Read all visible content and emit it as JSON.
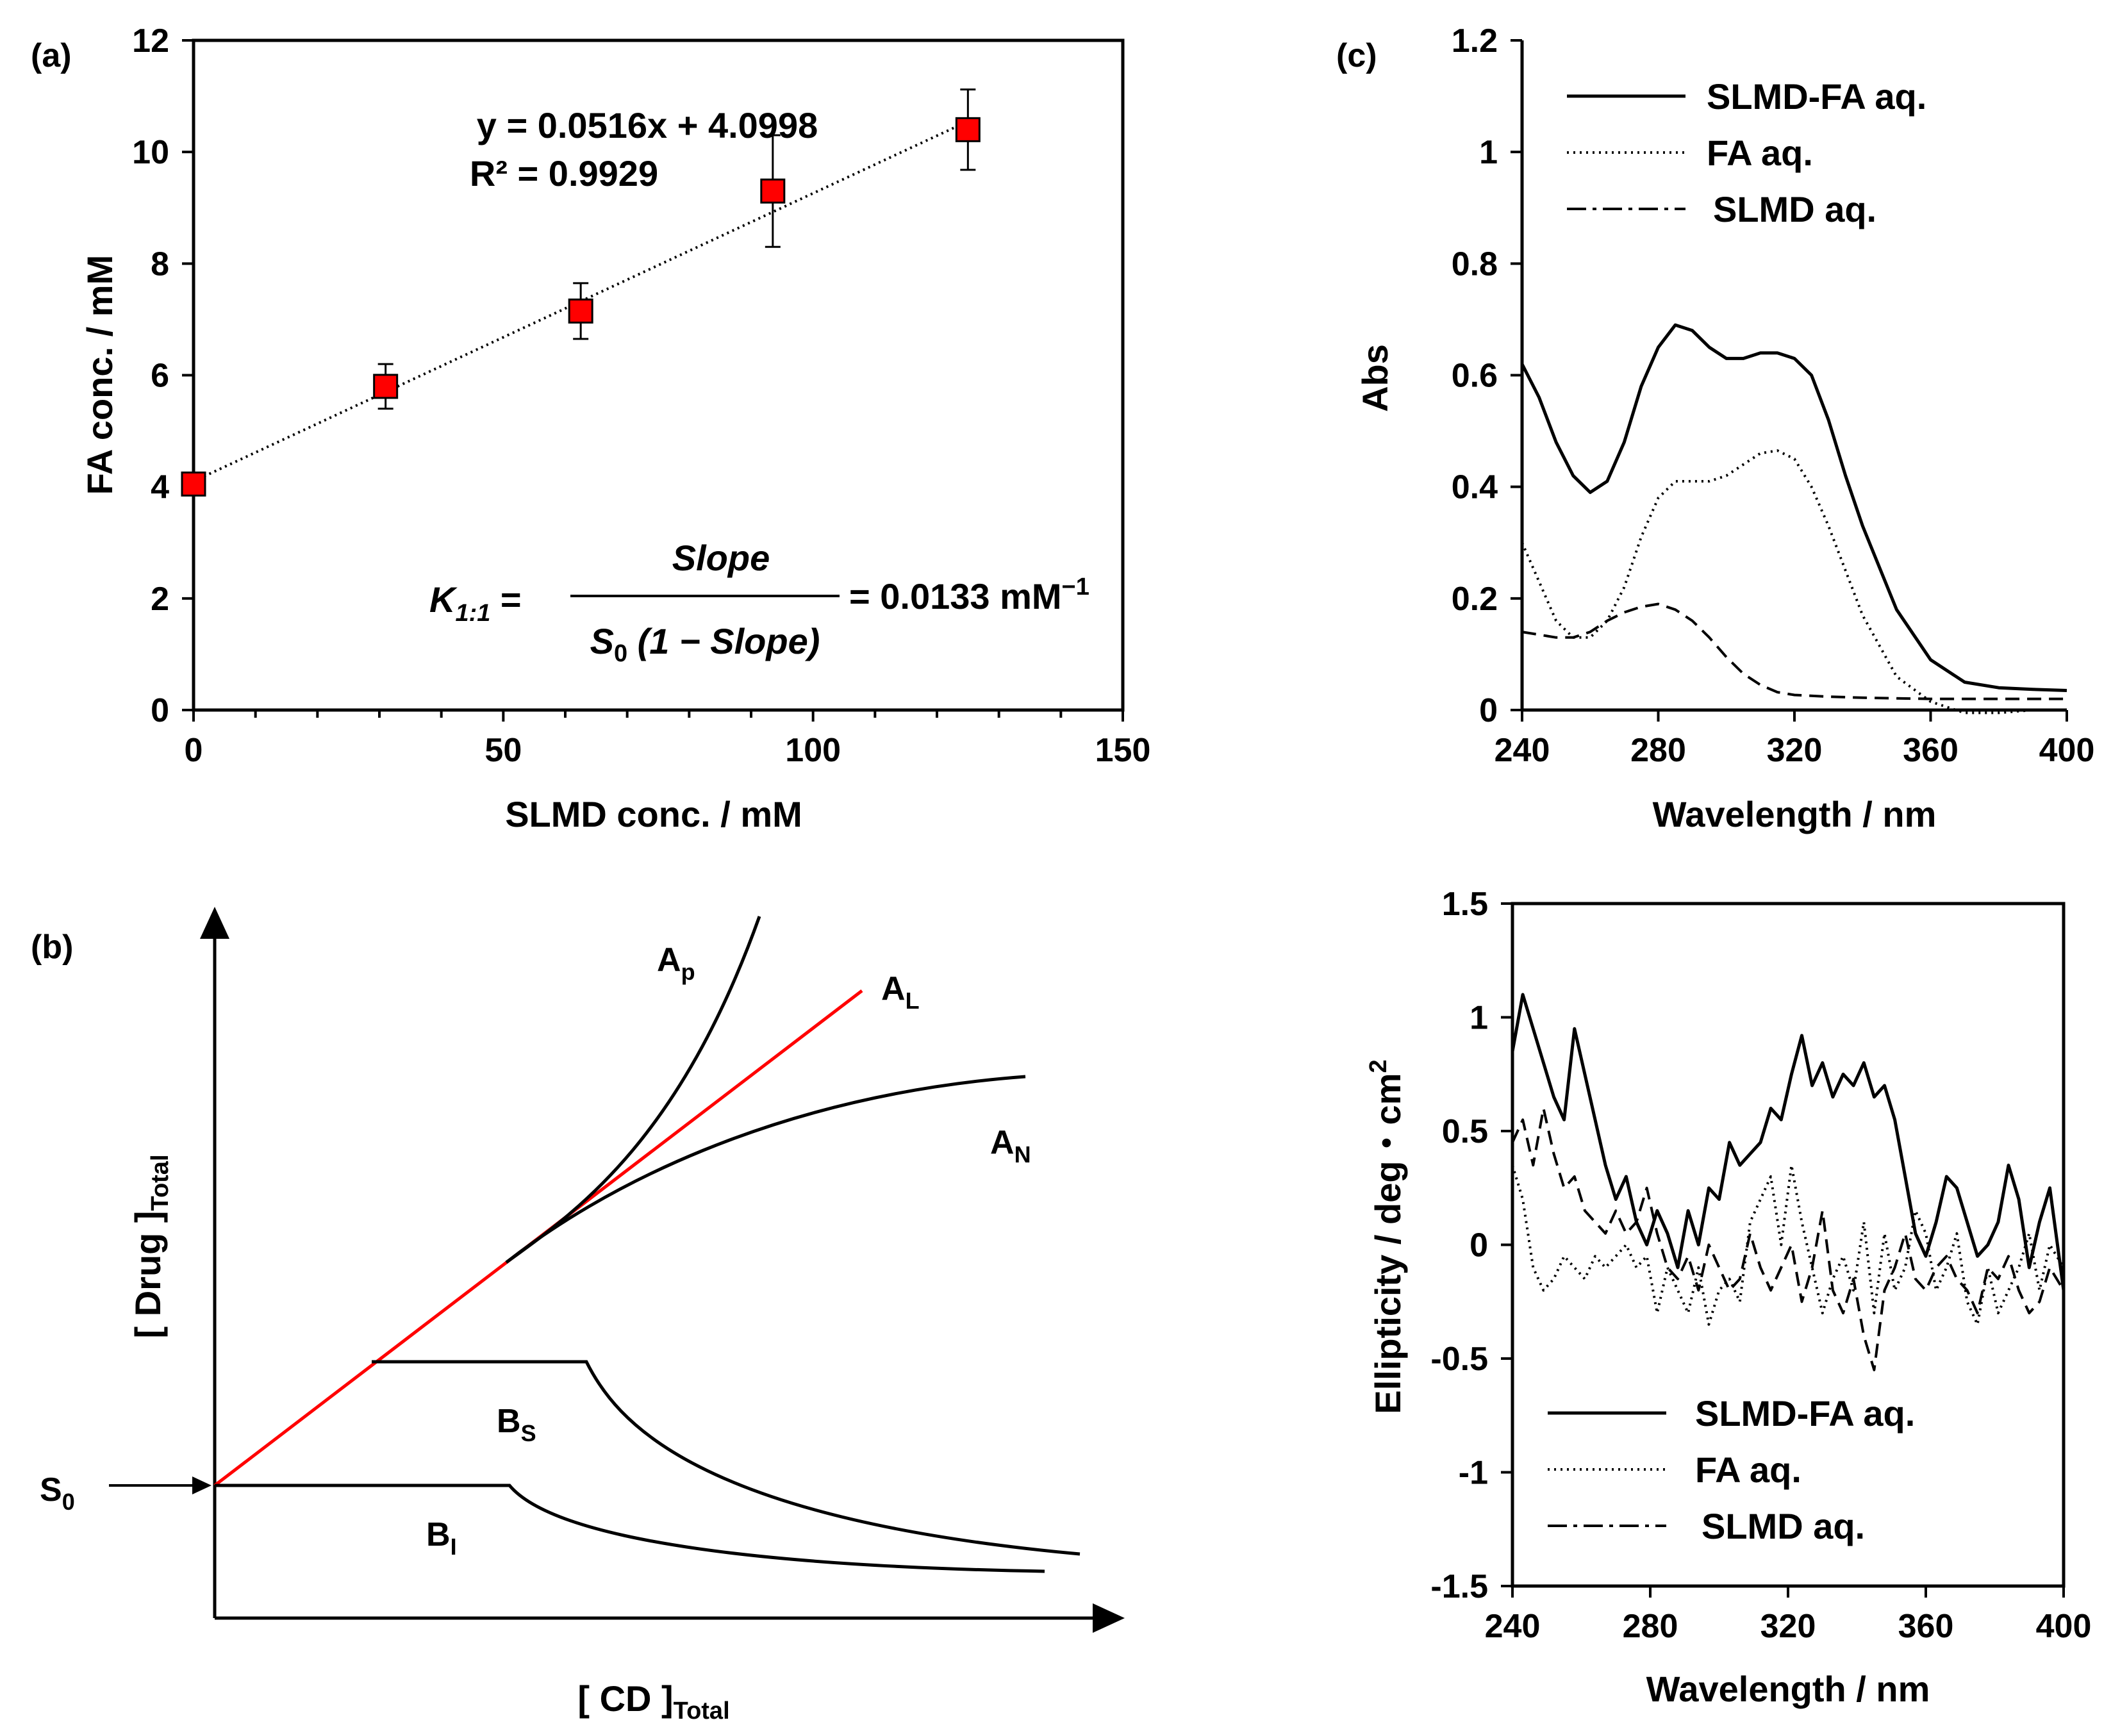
{
  "figure": {
    "a": {
      "label": "(a)",
      "chart_data": {
        "type": "scatter",
        "xlabel": "SLMD conc. / mM",
        "ylabel": "FA conc. / mM",
        "xlim": [
          0,
          150
        ],
        "ylim": [
          0,
          12
        ],
        "xticks": [
          "0",
          "50",
          "100",
          "150"
        ],
        "yticks": [
          "0",
          "2",
          "4",
          "6",
          "8",
          "10",
          "12"
        ],
        "x": [
          0,
          31,
          62.5,
          93.5,
          125
        ],
        "y": [
          4.05,
          5.8,
          7.15,
          9.3,
          10.4
        ],
        "err": [
          0,
          0.4,
          0.5,
          1.0,
          0.72
        ],
        "marker_color": "#ff0000",
        "trendline": {
          "slope": 0.0516,
          "intercept": 4.0998
        },
        "equation": "y = 0.0516x + 4.0998",
        "r2": "R² = 0.9929",
        "k_lhs": "K",
        "k_sub": "1:1",
        "k_eq": " =",
        "k_num": "Slope",
        "k_den_s": "S",
        "k_den_sub": "0",
        "k_den_rest": " (1 − Slope)",
        "k_rhs": "= 0.0133 mM",
        "k_rhs_sup": "−1"
      }
    },
    "b": {
      "label": "(b)",
      "ylabel": "[ Drug ]",
      "ylabel_sub": "Total",
      "xlabel": "[ CD ]",
      "xlabel_sub": "Total",
      "s0": "S",
      "s0_sub": "0",
      "ap": "A",
      "ap_sub": "p",
      "al": "A",
      "al_sub": "L",
      "an": "A",
      "an_sub": "N",
      "bs": "B",
      "bs_sub": "S",
      "bi": "B",
      "bi_sub": "I",
      "red": "#ff0000"
    },
    "c": {
      "label": "(c)",
      "chart_data": {
        "type": "line",
        "xlabel": "Wavelength / nm",
        "ylabel": "Abs",
        "xlim": [
          240,
          400
        ],
        "ylim": [
          0,
          1.2
        ],
        "xticks": [
          "240",
          "280",
          "320",
          "360",
          "400"
        ],
        "yticks": [
          "0",
          "0.2",
          "0.4",
          "0.6",
          "0.8",
          "1",
          "1.2"
        ],
        "series": [
          {
            "name": "SLMD-FA aq.",
            "style": "solid",
            "x": [
              240,
              245,
              250,
              255,
              260,
              265,
              270,
              275,
              280,
              285,
              290,
              295,
              300,
              305,
              310,
              315,
              320,
              325,
              330,
              335,
              340,
              350,
              360,
              370,
              380,
              390,
              400
            ],
            "y": [
              0.62,
              0.56,
              0.48,
              0.42,
              0.39,
              0.41,
              0.48,
              0.58,
              0.65,
              0.69,
              0.68,
              0.65,
              0.63,
              0.63,
              0.64,
              0.64,
              0.63,
              0.6,
              0.52,
              0.42,
              0.33,
              0.18,
              0.09,
              0.05,
              0.04,
              0.037,
              0.035
            ]
          },
          {
            "name": "FA aq.",
            "style": "dotted",
            "x": [
              240,
              245,
              250,
              255,
              260,
              265,
              270,
              275,
              280,
              285,
              290,
              295,
              300,
              305,
              310,
              315,
              320,
              325,
              330,
              335,
              340,
              350,
              360,
              370,
              380,
              390,
              400
            ],
            "y": [
              0.3,
              0.23,
              0.16,
              0.13,
              0.13,
              0.16,
              0.22,
              0.31,
              0.38,
              0.41,
              0.41,
              0.41,
              0.42,
              0.44,
              0.46,
              0.465,
              0.45,
              0.4,
              0.33,
              0.25,
              0.17,
              0.06,
              0.015,
              -0.005,
              -0.005,
              0.0,
              0.0
            ]
          },
          {
            "name": "SLMD aq.",
            "style": "dashed",
            "x": [
              240,
              245,
              250,
              255,
              260,
              265,
              270,
              275,
              280,
              285,
              290,
              295,
              300,
              305,
              310,
              315,
              320,
              330,
              340,
              360,
              380,
              400
            ],
            "y": [
              0.14,
              0.135,
              0.13,
              0.13,
              0.14,
              0.16,
              0.175,
              0.185,
              0.19,
              0.18,
              0.16,
              0.13,
              0.095,
              0.065,
              0.045,
              0.032,
              0.027,
              0.024,
              0.022,
              0.02,
              0.02,
              0.02
            ]
          }
        ]
      }
    },
    "d": {
      "chart_data": {
        "type": "line",
        "xlabel": "Wavelength / nm",
        "ylabel": "Ellipticity  / deg・cm",
        "ylabel_sup": "2",
        "xlim": [
          240,
          400
        ],
        "ylim": [
          -1.5,
          1.5
        ],
        "xticks": [
          "240",
          "280",
          "320",
          "360",
          "400"
        ],
        "yticks": [
          "-1.5",
          "-1",
          "-0.5",
          "0",
          "0.5",
          "1",
          "1.5"
        ],
        "series": [
          {
            "name": "SLMD-FA aq.",
            "style": "solid",
            "x": [
              240,
              243,
              246,
              249,
              252,
              255,
              258,
              261,
              264,
              267,
              270,
              273,
              276,
              279,
              282,
              285,
              288,
              291,
              294,
              297,
              300,
              303,
              306,
              309,
              312,
              315,
              318,
              321,
              324,
              327,
              330,
              333,
              336,
              339,
              342,
              345,
              348,
              351,
              354,
              357,
              360,
              363,
              366,
              369,
              372,
              375,
              378,
              381,
              384,
              387,
              390,
              393,
              396,
              400
            ],
            "y": [
              0.85,
              1.1,
              0.95,
              0.8,
              0.65,
              0.55,
              0.95,
              0.75,
              0.55,
              0.35,
              0.2,
              0.3,
              0.1,
              0.0,
              0.15,
              0.05,
              -0.1,
              0.15,
              0.0,
              0.25,
              0.2,
              0.45,
              0.35,
              0.4,
              0.45,
              0.6,
              0.55,
              0.75,
              0.92,
              0.7,
              0.8,
              0.65,
              0.75,
              0.7,
              0.8,
              0.65,
              0.7,
              0.55,
              0.3,
              0.05,
              -0.05,
              0.1,
              0.3,
              0.25,
              0.1,
              -0.05,
              0.0,
              0.1,
              0.35,
              0.2,
              -0.1,
              0.1,
              0.25,
              -0.2
            ]
          },
          {
            "name": "FA aq.",
            "style": "dotted",
            "x": [
              240,
              243,
              246,
              249,
              252,
              255,
              258,
              261,
              264,
              267,
              270,
              273,
              276,
              279,
              282,
              285,
              288,
              291,
              294,
              297,
              300,
              303,
              306,
              309,
              312,
              315,
              318,
              321,
              324,
              327,
              330,
              333,
              336,
              339,
              342,
              345,
              348,
              351,
              354,
              357,
              360,
              363,
              366,
              369,
              372,
              375,
              378,
              381,
              384,
              387,
              390,
              393,
              396,
              400
            ],
            "y": [
              0.35,
              0.2,
              -0.1,
              -0.2,
              -0.15,
              -0.05,
              -0.1,
              -0.15,
              -0.05,
              -0.1,
              -0.05,
              0.0,
              -0.1,
              -0.05,
              -0.3,
              -0.1,
              -0.2,
              -0.3,
              -0.1,
              -0.35,
              -0.2,
              -0.15,
              -0.25,
              0.1,
              0.2,
              0.3,
              0.0,
              0.35,
              0.1,
              -0.1,
              -0.3,
              -0.15,
              -0.05,
              -0.2,
              0.1,
              -0.3,
              0.05,
              -0.2,
              -0.1,
              0.15,
              0.05,
              -0.2,
              -0.1,
              0.05,
              -0.25,
              -0.35,
              -0.1,
              -0.3,
              -0.2,
              -0.1,
              0.05,
              -0.2,
              0.0,
              -0.1
            ]
          },
          {
            "name": "SLMD aq.",
            "style": "dashed",
            "x": [
              240,
              243,
              246,
              249,
              252,
              255,
              258,
              261,
              264,
              267,
              270,
              273,
              276,
              279,
              282,
              285,
              288,
              291,
              294,
              297,
              300,
              303,
              306,
              309,
              312,
              315,
              318,
              321,
              324,
              327,
              330,
              333,
              336,
              339,
              342,
              345,
              348,
              351,
              354,
              357,
              360,
              363,
              366,
              369,
              372,
              375,
              378,
              381,
              384,
              387,
              390,
              393,
              396,
              400
            ],
            "y": [
              0.45,
              0.55,
              0.35,
              0.6,
              0.4,
              0.25,
              0.3,
              0.15,
              0.1,
              0.05,
              0.15,
              0.05,
              0.1,
              0.25,
              0.05,
              -0.1,
              -0.15,
              -0.05,
              -0.2,
              0.0,
              -0.1,
              -0.2,
              -0.15,
              0.05,
              -0.1,
              -0.2,
              -0.1,
              0.0,
              -0.25,
              -0.1,
              0.15,
              -0.2,
              -0.3,
              -0.15,
              -0.4,
              -0.55,
              -0.2,
              -0.1,
              0.05,
              -0.15,
              -0.2,
              -0.1,
              -0.05,
              -0.15,
              -0.2,
              -0.3,
              -0.1,
              -0.15,
              -0.05,
              -0.2,
              -0.3,
              -0.25,
              -0.1,
              -0.2
            ]
          }
        ]
      }
    }
  }
}
